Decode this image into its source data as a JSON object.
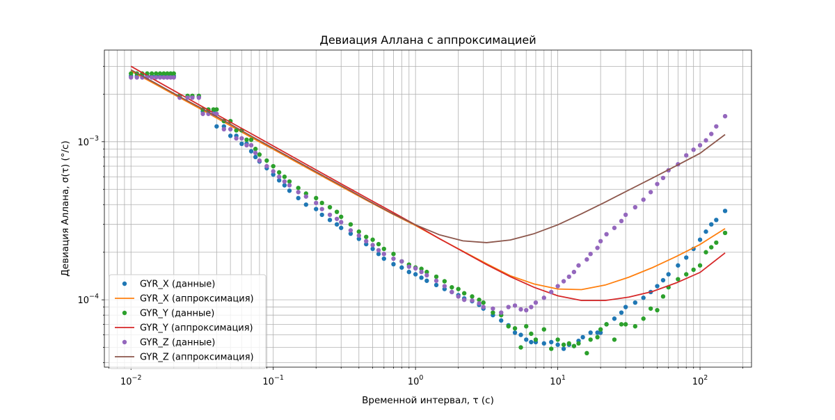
{
  "chart_data": {
    "type": "scatter",
    "title": "Девиация Аллана с аппроксимацией",
    "xlabel": "Временной интервал, τ (с)",
    "ylabel": "Девиация Аллана, σ(τ) (°/с)",
    "xscale": "log",
    "yscale": "log",
    "xlim": [
      0.0065,
      230
    ],
    "ylim": [
      3.75e-05,
      0.0038
    ],
    "grid": "both",
    "legend_position": "lower-left",
    "x_tick_labels": [
      {
        "base": "10",
        "exp": "−2",
        "value": 0.01
      },
      {
        "base": "10",
        "exp": "−1",
        "value": 0.1
      },
      {
        "base": "10",
        "exp": "0",
        "value": 1
      },
      {
        "base": "10",
        "exp": "1",
        "value": 10
      },
      {
        "base": "10",
        "exp": "2",
        "value": 100
      }
    ],
    "y_tick_labels": [
      {
        "base": "10",
        "exp": "−4",
        "value": 0.0001
      },
      {
        "base": "10",
        "exp": "−3",
        "value": 0.001
      }
    ],
    "series": [
      {
        "name": "GYR_X (данные)",
        "kind": "points",
        "color": "#1f77b4",
        "x": [
          0.01,
          0.011,
          0.012,
          0.013,
          0.014,
          0.015,
          0.016,
          0.017,
          0.018,
          0.019,
          0.02,
          0.022,
          0.025,
          0.027,
          0.03,
          0.032,
          0.035,
          0.038,
          0.04,
          0.045,
          0.05,
          0.055,
          0.06,
          0.065,
          0.07,
          0.075,
          0.08,
          0.09,
          0.1,
          0.11,
          0.12,
          0.13,
          0.15,
          0.17,
          0.2,
          0.22,
          0.25,
          0.28,
          0.3,
          0.35,
          0.4,
          0.45,
          0.5,
          0.55,
          0.6,
          0.7,
          0.8,
          0.9,
          1.0,
          1.1,
          1.2,
          1.4,
          1.6,
          1.8,
          2.0,
          2.2,
          2.5,
          2.8,
          3.0,
          3.5,
          4.0,
          4.5,
          5.0,
          5.5,
          6.0,
          6.5,
          7.0,
          8.0,
          9.0,
          10.0,
          11.0,
          12.0,
          13.0,
          14.0,
          15.0,
          17.0,
          19.0,
          20.0,
          22.0,
          25.0,
          28.0,
          30.0,
          35.0,
          40.0,
          45.0,
          50.0,
          55.0,
          60.0,
          70.0,
          80.0,
          90.0,
          100.0,
          110.0,
          120.0,
          130.0,
          150.0
        ],
        "y": [
          0.0026,
          0.0026,
          0.0026,
          0.0026,
          0.0026,
          0.0026,
          0.0026,
          0.0026,
          0.0026,
          0.0026,
          0.0026,
          0.00193,
          0.00193,
          0.00193,
          0.00193,
          0.00155,
          0.00155,
          0.00155,
          0.00125,
          0.00125,
          0.00109,
          0.00109,
          0.00097,
          0.00097,
          0.00087,
          0.0008,
          0.00075,
          0.00068,
          0.00062,
          0.00057,
          0.00053,
          0.00049,
          0.00044,
          0.0004,
          0.000375,
          0.000345,
          0.00032,
          0.0003,
          0.000285,
          0.000262,
          0.000243,
          0.000225,
          0.00021,
          0.000195,
          0.000182,
          0.000168,
          0.00016,
          0.00015,
          0.000145,
          0.000138,
          0.000132,
          0.000124,
          0.000117,
          0.000112,
          0.000107,
          0.000102,
          9.8e-05,
          9.3e-05,
          8.8e-05,
          8e-05,
          7.4e-05,
          6.9e-05,
          6.2e-05,
          6e-05,
          5.6e-05,
          5.4e-05,
          5.4e-05,
          5.3e-05,
          5.4e-05,
          5.2e-05,
          4.9e-05,
          5.2e-05,
          5.1e-05,
          5.5e-05,
          5.8e-05,
          6.2e-05,
          6.2e-05,
          6.2e-05,
          7e-05,
          7.6e-05,
          8.3e-05,
          9e-05,
          9.6e-05,
          0.000103,
          0.000112,
          0.000122,
          0.000133,
          0.000145,
          0.000165,
          0.000185,
          0.00021,
          0.00024,
          0.00027,
          0.0003,
          0.00032,
          0.000365
        ]
      },
      {
        "name": "GYR_X (аппроксимация)",
        "kind": "line",
        "color": "#ff7f0e",
        "x": [
          0.01,
          0.0147,
          0.0215,
          0.0316,
          0.0464,
          0.0681,
          0.1,
          0.147,
          0.215,
          0.316,
          0.464,
          0.681,
          1.0,
          1.468,
          2.154,
          3.162,
          4.642,
          6.813,
          10.0,
          14.68,
          21.54,
          31.62,
          46.42,
          68.13,
          100.0,
          150.0
        ],
        "y": [
          0.0028,
          0.00232,
          0.00192,
          0.00159,
          0.00131,
          0.00108,
          0.000895,
          0.00074,
          0.000613,
          0.000508,
          0.000421,
          0.000351,
          0.000295,
          0.000244,
          0.000203,
          0.000169,
          0.000142,
          0.000126,
          0.000117,
          0.000116,
          0.000124,
          0.000139,
          0.00016,
          0.000188,
          0.000224,
          0.000282
        ]
      },
      {
        "name": "GYR_Y (данные)",
        "kind": "points",
        "color": "#2ca02c",
        "x": [
          0.01,
          0.011,
          0.012,
          0.013,
          0.014,
          0.015,
          0.016,
          0.017,
          0.018,
          0.019,
          0.02,
          0.022,
          0.025,
          0.027,
          0.03,
          0.032,
          0.035,
          0.038,
          0.04,
          0.045,
          0.05,
          0.055,
          0.06,
          0.065,
          0.07,
          0.075,
          0.08,
          0.09,
          0.1,
          0.11,
          0.12,
          0.13,
          0.15,
          0.17,
          0.2,
          0.22,
          0.25,
          0.28,
          0.3,
          0.35,
          0.4,
          0.45,
          0.5,
          0.55,
          0.6,
          0.7,
          0.8,
          0.9,
          1.0,
          1.1,
          1.2,
          1.4,
          1.6,
          1.8,
          2.0,
          2.2,
          2.5,
          2.8,
          3.0,
          3.5,
          4.0,
          4.5,
          5.0,
          5.5,
          6.0,
          6.5,
          7.0,
          8.0,
          9.0,
          10.0,
          11.0,
          12.0,
          13.0,
          14.0,
          16.0,
          17.0,
          19.0,
          20.0,
          22.0,
          25.0,
          28.0,
          30.0,
          35.0,
          40.0,
          45.0,
          50.0,
          55.0,
          60.0,
          70.0,
          80.0,
          90.0,
          100.0,
          110.0,
          120.0,
          130.0,
          150.0
        ],
        "y": [
          0.0027,
          0.0027,
          0.0027,
          0.0027,
          0.0027,
          0.0027,
          0.0027,
          0.0027,
          0.0027,
          0.0027,
          0.0027,
          0.00195,
          0.00195,
          0.00195,
          0.00195,
          0.0016,
          0.0016,
          0.0016,
          0.0016,
          0.00135,
          0.00135,
          0.00118,
          0.00118,
          0.00103,
          0.00103,
          0.0009,
          0.00083,
          0.00076,
          0.0007,
          0.00064,
          0.0006,
          0.00056,
          0.00051,
          0.00047,
          0.00044,
          0.00041,
          0.000385,
          0.00036,
          0.000335,
          0.0003,
          0.00027,
          0.00025,
          0.00024,
          0.000225,
          0.00021,
          0.000195,
          0.000175,
          0.000167,
          0.00016,
          0.000157,
          0.00015,
          0.00014,
          0.000131,
          0.00012,
          0.000117,
          0.00011,
          0.000105,
          0.0001,
          9.6e-05,
          8.3e-05,
          8e-05,
          6.8e-05,
          6.6e-05,
          5e-05,
          6.8e-05,
          6.1e-05,
          5.6e-05,
          6.5e-05,
          4.9e-05,
          5.6e-05,
          5.2e-05,
          5.3e-05,
          5.1e-05,
          5.3e-05,
          4.6e-05,
          5.6e-05,
          5.8e-05,
          6.5e-05,
          7e-05,
          5.6e-05,
          7e-05,
          7e-05,
          6.8e-05,
          7.6e-05,
          8.8e-05,
          8.6e-05,
          0.000105,
          0.00012,
          0.000135,
          0.000145,
          0.000155,
          0.000165,
          0.0002,
          0.000215,
          0.00023,
          0.000265
        ]
      },
      {
        "name": "GYR_Y (аппроксимация)",
        "kind": "line",
        "color": "#d62728",
        "x": [
          0.01,
          0.0147,
          0.0215,
          0.0316,
          0.0464,
          0.0681,
          0.1,
          0.147,
          0.215,
          0.316,
          0.464,
          0.681,
          1.0,
          1.468,
          2.154,
          3.162,
          4.642,
          6.813,
          10.0,
          14.68,
          21.54,
          31.62,
          46.42,
          68.13,
          100.0,
          150.0
        ],
        "y": [
          0.003,
          0.00246,
          0.00203,
          0.00167,
          0.00138,
          0.00114,
          0.00094,
          0.000775,
          0.00064,
          0.000528,
          0.000436,
          0.000361,
          0.000298,
          0.000244,
          0.000202,
          0.000167,
          0.00014,
          0.00012,
          0.000106,
          9.9e-05,
          9.9e-05,
          0.000104,
          0.000113,
          0.000128,
          0.000149,
          0.000198
        ]
      },
      {
        "name": "GYR_Z (данные)",
        "kind": "points",
        "color": "#9467bd",
        "x": [
          0.01,
          0.011,
          0.012,
          0.013,
          0.014,
          0.015,
          0.016,
          0.017,
          0.018,
          0.019,
          0.02,
          0.022,
          0.025,
          0.027,
          0.03,
          0.032,
          0.035,
          0.038,
          0.04,
          0.045,
          0.05,
          0.055,
          0.06,
          0.065,
          0.07,
          0.075,
          0.08,
          0.09,
          0.1,
          0.11,
          0.12,
          0.13,
          0.15,
          0.17,
          0.2,
          0.22,
          0.25,
          0.28,
          0.3,
          0.35,
          0.4,
          0.45,
          0.5,
          0.55,
          0.6,
          0.7,
          0.8,
          0.9,
          1.0,
          1.1,
          1.2,
          1.4,
          1.6,
          1.8,
          2.0,
          2.2,
          2.5,
          2.8,
          3.0,
          3.5,
          4.0,
          4.5,
          5.0,
          5.5,
          6.0,
          6.5,
          7.0,
          8.0,
          9.0,
          10.0,
          11.0,
          12.0,
          13.0,
          14.0,
          16.0,
          17.0,
          19.0,
          20.0,
          22.0,
          25.0,
          28.0,
          30.0,
          35.0,
          40.0,
          45.0,
          50.0,
          55.0,
          60.0,
          70.0,
          80.0,
          90.0,
          100.0,
          110.0,
          120.0,
          130.0,
          150.0
        ],
        "y": [
          0.00255,
          0.00255,
          0.00255,
          0.00255,
          0.00255,
          0.00255,
          0.00255,
          0.00255,
          0.00255,
          0.00255,
          0.00255,
          0.0019,
          0.0019,
          0.0019,
          0.0019,
          0.0015,
          0.0015,
          0.0015,
          0.0015,
          0.0012,
          0.0012,
          0.00105,
          0.00105,
          0.00095,
          0.00095,
          0.00085,
          0.00076,
          0.0007,
          0.00065,
          0.0006,
          0.00056,
          0.00053,
          0.00048,
          0.00045,
          0.00041,
          0.000375,
          0.000345,
          0.000325,
          0.00031,
          0.000275,
          0.000255,
          0.000235,
          0.000222,
          0.000206,
          0.000195,
          0.000182,
          0.000175,
          0.000162,
          0.000158,
          0.00015,
          0.000143,
          0.000132,
          0.000122,
          0.000112,
          0.000105,
          0.0001,
          9.9e-05,
          9.5e-05,
          9e-05,
          8.8e-05,
          8.3e-05,
          9e-05,
          9.2e-05,
          8.7e-05,
          8.6e-05,
          9e-05,
          9.6e-05,
          0.000103,
          0.000112,
          0.000122,
          0.000131,
          0.00014,
          0.00015,
          0.000165,
          0.00018,
          0.000195,
          0.000213,
          0.000235,
          0.00026,
          0.000285,
          0.000315,
          0.000345,
          0.000385,
          0.00043,
          0.00048,
          0.00054,
          0.00059,
          0.00066,
          0.00072,
          0.00082,
          0.00089,
          0.00095,
          0.00102,
          0.00112,
          0.00125,
          0.00145
        ]
      },
      {
        "name": "GYR_Z (аппроксимация)",
        "kind": "line",
        "color": "#8c564b",
        "x": [
          0.01,
          0.0147,
          0.0215,
          0.0316,
          0.0464,
          0.0681,
          0.1,
          0.147,
          0.215,
          0.316,
          0.464,
          0.681,
          1.0,
          1.468,
          2.154,
          3.162,
          4.642,
          6.813,
          10.0,
          14.68,
          21.54,
          31.62,
          46.42,
          68.13,
          100.0,
          150.0
        ],
        "y": [
          0.00285,
          0.00236,
          0.00195,
          0.00162,
          0.00134,
          0.0011,
          0.00091,
          0.000752,
          0.000622,
          0.000515,
          0.000425,
          0.000353,
          0.000298,
          0.000258,
          0.000236,
          0.00023,
          0.000239,
          0.000262,
          0.000298,
          0.00035,
          0.000415,
          0.000495,
          0.00059,
          0.000705,
          0.000845,
          0.00111
        ]
      }
    ]
  }
}
